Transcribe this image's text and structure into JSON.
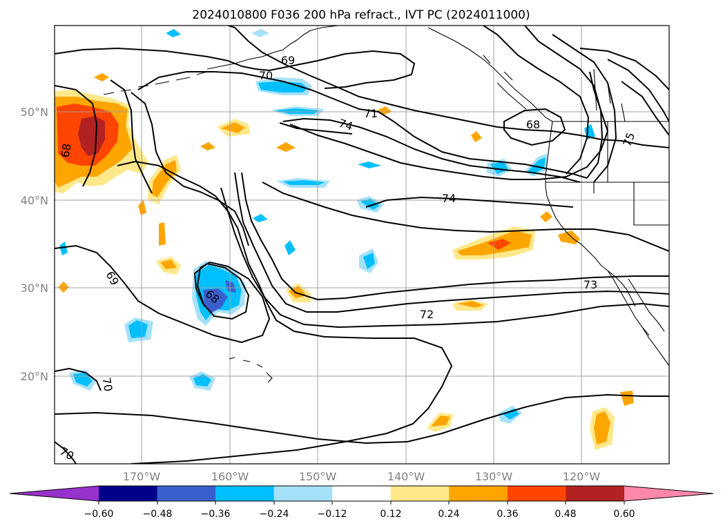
{
  "map": {
    "title": "2024010800 F036 200 hPa refract., IVT PC (2024011000)",
    "lon_ticks": [
      "170°W",
      "160°W",
      "150°W",
      "140°W",
      "130°W",
      "120°W"
    ],
    "lat_ticks": [
      "50°N",
      "40°N",
      "30°N",
      "20°N"
    ],
    "contour_labels": [
      "69",
      "70",
      "71",
      "74",
      "68",
      "75",
      "74",
      "73",
      "72",
      "69",
      "68",
      "70",
      "70",
      "68"
    ],
    "colors": {
      "contour": "#000000",
      "grid": "#a0a0a0",
      "coast": "#000000"
    }
  },
  "colorbar": {
    "levels": [
      "−0.60",
      "−0.48",
      "−0.36",
      "−0.24",
      "−0.12",
      "0.12",
      "0.24",
      "0.36",
      "0.48",
      "0.60"
    ],
    "colors": [
      "#9932cc",
      "#00008b",
      "#3a5fcd",
      "#00bfff",
      "#a6e1fa",
      "#ffffff",
      "#ffe88a",
      "#ffa500",
      "#ff4500",
      "#b22222",
      "#ff88aa"
    ]
  }
}
